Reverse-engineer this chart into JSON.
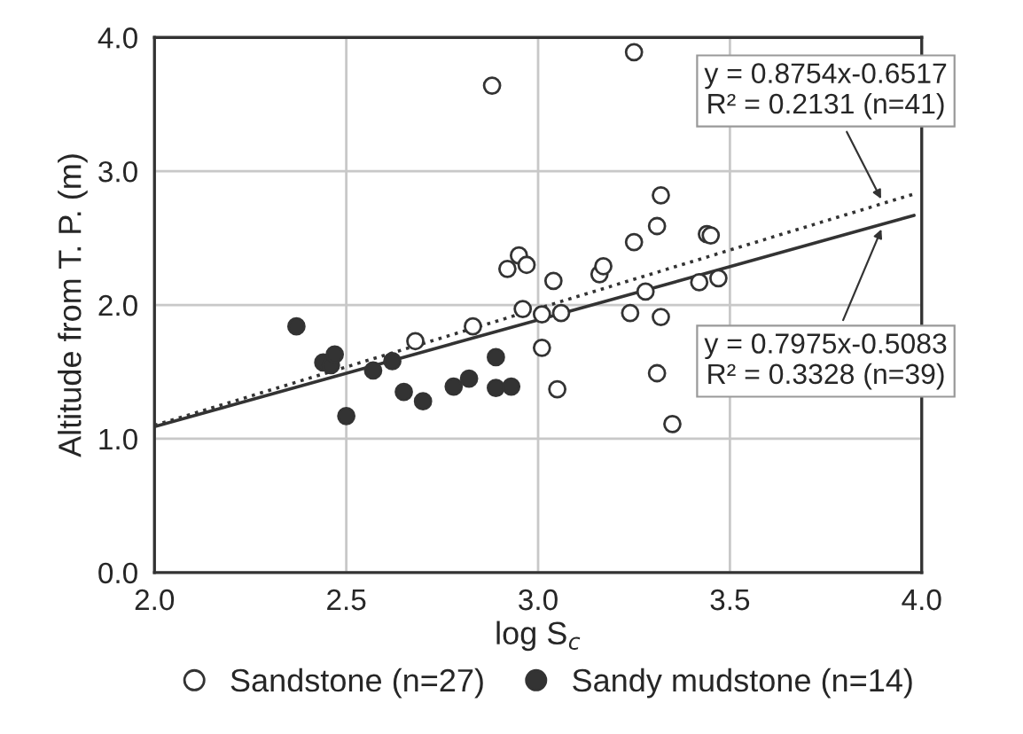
{
  "chart_data": {
    "type": "scatter",
    "xlabel": "log S$_{c}$",
    "ylabel": "Altitude from T. P. (m)",
    "xlim": [
      2.0,
      4.0
    ],
    "ylim": [
      0.0,
      4.0
    ],
    "xticks": [
      {
        "value": 2.0,
        "label": "2.0"
      },
      {
        "value": 2.5,
        "label": "2.5"
      },
      {
        "value": 3.0,
        "label": "3.0"
      },
      {
        "value": 3.5,
        "label": "3.5"
      },
      {
        "value": 4.0,
        "label": "4.0"
      }
    ],
    "yticks": [
      {
        "value": 0.0,
        "label": "0.0"
      },
      {
        "value": 1.0,
        "label": "1.0"
      },
      {
        "value": 2.0,
        "label": "2.0"
      },
      {
        "value": 3.0,
        "label": "3.0"
      },
      {
        "value": 4.0,
        "label": "4.0"
      }
    ],
    "grid": true,
    "legend": "bottom",
    "marker": "circle",
    "series": [
      {
        "name": "Sandstone (n=27)",
        "color": "#ffffff",
        "x": [
          2.88,
          3.25,
          2.95,
          2.92,
          2.97,
          3.04,
          3.16,
          3.17,
          3.25,
          2.96,
          3.01,
          3.06,
          3.24,
          2.83,
          2.68,
          3.01,
          3.05,
          3.32,
          3.31,
          3.44,
          3.45,
          3.28,
          3.42,
          3.47,
          3.32,
          3.31,
          3.35
        ],
        "values": [
          3.64,
          3.89,
          2.37,
          2.27,
          2.3,
          2.18,
          2.23,
          2.29,
          2.47,
          1.97,
          1.93,
          1.94,
          1.94,
          1.84,
          1.73,
          1.68,
          1.37,
          2.82,
          2.59,
          2.53,
          2.52,
          2.1,
          2.17,
          2.2,
          1.91,
          1.49,
          1.11
        ]
      },
      {
        "name": "Sandy mudstone (n=14)",
        "color": "#333333",
        "x": [
          2.37,
          2.44,
          2.46,
          2.47,
          2.5,
          2.57,
          2.62,
          2.65,
          2.7,
          2.78,
          2.82,
          2.89,
          2.89,
          2.93
        ],
        "values": [
          1.84,
          1.57,
          1.55,
          1.63,
          1.17,
          1.51,
          1.58,
          1.35,
          1.28,
          1.39,
          1.45,
          1.38,
          1.61,
          1.39
        ]
      },
      {
        "type": "line",
        "color": "#333333",
        "line_style": "dotted",
        "marker": "none",
        "x": [
          2.0,
          3.98
        ],
        "values": [
          1.1,
          2.83
        ]
      },
      {
        "type": "line",
        "color": "#333333",
        "line_style": "solid",
        "marker": "none",
        "x": [
          2.0,
          3.98
        ],
        "values": [
          1.09,
          2.67
        ]
      }
    ],
    "annotations": [
      {
        "text": "y = 0.8754x-0.6517\nR² = 0.2131 (n=41)",
        "x": 3.9,
        "y": 2.76
      },
      {
        "text": "y = 0.7975x-0.5083\nR² = 0.3328 (n=39)",
        "x": 3.9,
        "y": 2.6
      }
    ]
  }
}
